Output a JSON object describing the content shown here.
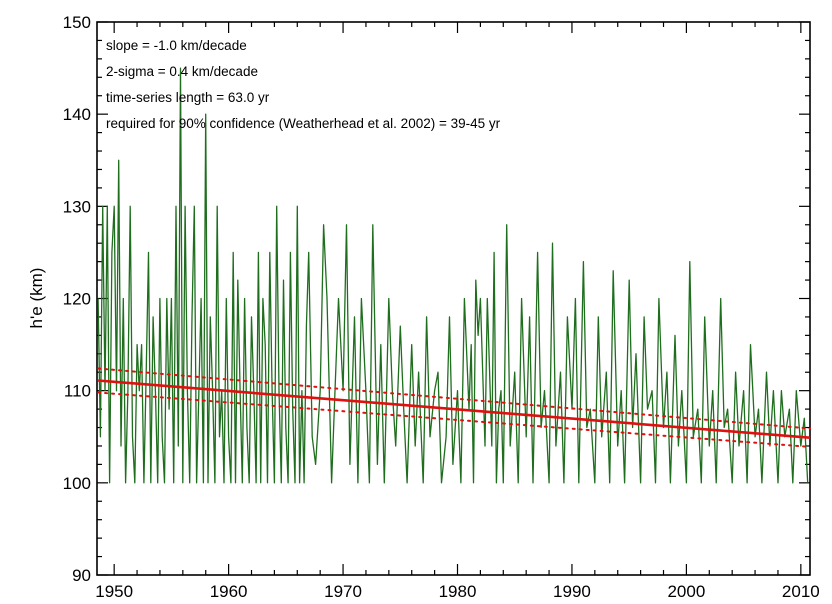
{
  "chart_data": {
    "type": "line",
    "title": "",
    "xlabel": "",
    "ylabel": "h'e (km)",
    "xlim": [
      1948.5,
      2010.8
    ],
    "ylim": [
      90,
      150
    ],
    "x_ticks": [
      1950,
      1960,
      1970,
      1980,
      1990,
      2000,
      2010
    ],
    "x_tick_labels": [
      "1950",
      "1960",
      "1970",
      "1980",
      "1990",
      "2000",
      "2010"
    ],
    "y_ticks": [
      90,
      100,
      110,
      120,
      130,
      140,
      150
    ],
    "y_tick_labels": [
      "90",
      "100",
      "110",
      "120",
      "130",
      "140",
      "150"
    ],
    "grid": false,
    "annotations": [
      "slope = -1.0 km/decade",
      "2-sigma = 0.4 km/decade",
      "time-series length = 63.0 yr",
      "required for 90% confidence (Weatherhead et al. 2002) = 39-45 yr"
    ],
    "series": [
      {
        "kind": "data",
        "color": "#1e6e1e",
        "x": [
          1948.6,
          1948.8,
          1949.0,
          1949.2,
          1949.4,
          1949.6,
          1949.8,
          1950.0,
          1950.2,
          1950.4,
          1950.6,
          1950.8,
          1951.0,
          1951.2,
          1951.4,
          1951.6,
          1951.8,
          1952.0,
          1952.2,
          1952.4,
          1952.6,
          1952.8,
          1953.0,
          1953.2,
          1953.4,
          1953.6,
          1953.8,
          1954.0,
          1954.2,
          1954.4,
          1954.6,
          1954.8,
          1955.0,
          1955.2,
          1955.4,
          1955.6,
          1955.8,
          1956.0,
          1956.2,
          1956.4,
          1956.6,
          1956.8,
          1957.0,
          1957.2,
          1957.4,
          1957.6,
          1957.8,
          1958.0,
          1958.2,
          1958.4,
          1958.6,
          1958.8,
          1959.0,
          1959.2,
          1959.4,
          1959.6,
          1959.8,
          1960.0,
          1960.2,
          1960.4,
          1960.6,
          1960.8,
          1961.0,
          1961.2,
          1961.4,
          1961.6,
          1961.8,
          1962.0,
          1962.2,
          1962.4,
          1962.6,
          1962.8,
          1963.0,
          1963.2,
          1963.4,
          1963.6,
          1963.8,
          1964.0,
          1964.2,
          1964.4,
          1964.6,
          1964.8,
          1965.0,
          1965.2,
          1965.4,
          1965.6,
          1965.8,
          1966.0,
          1966.2,
          1966.4,
          1966.6,
          1966.8,
          1967.0,
          1967.3,
          1967.6,
          1968.0,
          1968.3,
          1968.6,
          1969.0,
          1969.3,
          1969.6,
          1970.0,
          1970.3,
          1970.6,
          1971.0,
          1971.3,
          1971.6,
          1972.0,
          1972.3,
          1972.6,
          1973.0,
          1973.3,
          1973.6,
          1974.0,
          1974.3,
          1974.6,
          1975.0,
          1975.3,
          1975.6,
          1976.0,
          1976.3,
          1976.6,
          1977.0,
          1977.3,
          1977.6,
          1978.0,
          1978.3,
          1978.6,
          1979.0,
          1979.3,
          1979.6,
          1980.0,
          1980.3,
          1980.6,
          1981.0,
          1981.2,
          1981.4,
          1981.6,
          1981.8,
          1982.0,
          1982.2,
          1982.4,
          1982.6,
          1982.8,
          1983.0,
          1983.2,
          1983.4,
          1983.6,
          1983.8,
          1984.0,
          1984.3,
          1984.6,
          1985.0,
          1985.3,
          1985.6,
          1986.0,
          1986.3,
          1986.6,
          1987.0,
          1987.3,
          1987.6,
          1988.0,
          1988.3,
          1988.6,
          1989.0,
          1989.3,
          1989.6,
          1990.0,
          1990.3,
          1990.6,
          1991.0,
          1991.3,
          1991.6,
          1992.0,
          1992.3,
          1992.6,
          1993.0,
          1993.3,
          1993.6,
          1994.0,
          1994.3,
          1994.6,
          1995.0,
          1995.3,
          1995.6,
          1996.0,
          1996.3,
          1996.6,
          1997.0,
          1997.3,
          1997.6,
          1998.0,
          1998.3,
          1998.6,
          1999.0,
          1999.3,
          1999.6,
          2000.0,
          2000.3,
          2000.6,
          2001.0,
          2001.3,
          2001.6,
          2002.0,
          2002.3,
          2002.6,
          2003.0,
          2003.3,
          2003.6,
          2004.0,
          2004.3,
          2004.6,
          2005.0,
          2005.3,
          2005.6,
          2006.0,
          2006.3,
          2006.6,
          2007.0,
          2007.3,
          2007.6,
          2008.0,
          2008.3,
          2008.6,
          2009.0,
          2009.3,
          2009.6,
          2010.0,
          2010.3,
          2010.6
        ],
        "y": [
          120,
          105,
          130,
          110,
          130,
          100,
          125,
          130,
          110,
          135,
          104,
          120,
          100,
          110,
          130,
          105,
          100,
          115,
          110,
          115,
          100,
          112,
          125,
          100,
          118,
          110,
          100,
          120,
          105,
          100,
          120,
          108,
          120,
          100,
          130,
          104,
          145,
          100,
          130,
          110,
          100,
          118,
          130,
          100,
          110,
          120,
          100,
          140,
          100,
          118,
          110,
          100,
          130,
          105,
          110,
          100,
          120,
          105,
          100,
          125,
          100,
          122,
          110,
          100,
          120,
          106,
          100,
          118,
          110,
          100,
          125,
          100,
          120,
          115,
          100,
          125,
          110,
          100,
          130,
          110,
          100,
          122,
          106,
          100,
          125,
          108,
          100,
          130,
          100,
          110,
          100,
          117,
          125,
          105,
          102,
          110,
          128,
          120,
          100,
          110,
          120,
          110,
          128,
          102,
          118,
          100,
          120,
          110,
          100,
          128,
          102,
          115,
          100,
          120,
          110,
          104,
          117,
          108,
          100,
          115,
          104,
          112,
          100,
          118,
          105,
          110,
          112,
          100,
          105,
          118,
          102,
          110,
          100,
          120,
          108,
          115,
          100,
          122,
          116,
          120,
          112,
          104,
          120,
          112,
          104,
          125,
          100,
          108,
          110,
          100,
          128,
          104,
          112,
          100,
          120,
          105,
          118,
          100,
          125,
          106,
          110,
          100,
          126,
          104,
          112,
          100,
          118,
          108,
          120,
          100,
          124,
          106,
          108,
          100,
          118,
          105,
          112,
          100,
          123,
          104,
          110,
          100,
          122,
          106,
          114,
          100,
          118,
          108,
          110,
          100,
          120,
          106,
          112,
          100,
          116,
          104,
          110,
          100,
          124,
          105,
          108,
          100,
          118,
          104,
          110,
          100,
          120,
          106,
          108,
          100,
          112,
          104,
          110,
          100,
          115,
          105,
          108,
          100,
          112,
          104,
          110,
          100,
          110,
          105,
          108,
          100,
          110,
          104,
          107,
          100
        ]
      },
      {
        "kind": "trend",
        "color": "#e01010",
        "x": [
          1948.6,
          2010.8
        ],
        "y": [
          111.1,
          104.9
        ]
      },
      {
        "kind": "confidence-upper",
        "color": "#e01010",
        "x": [
          1948.6,
          2010.8
        ],
        "y": [
          112.4,
          105.9
        ]
      },
      {
        "kind": "confidence-lower",
        "color": "#e01010",
        "x": [
          1948.6,
          2010.8
        ],
        "y": [
          109.8,
          103.9
        ]
      }
    ]
  }
}
